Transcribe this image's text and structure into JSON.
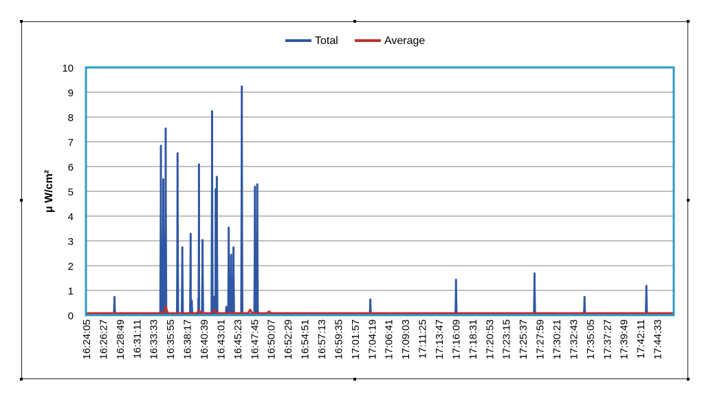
{
  "chart_data": {
    "type": "line",
    "title": "",
    "xlabel": "",
    "ylabel": "μ W/cm²",
    "ylim": [
      0,
      10
    ],
    "yticks": [
      0,
      1,
      2,
      3,
      4,
      5,
      6,
      7,
      8,
      9,
      10
    ],
    "grid": true,
    "legend_placement": "top-center",
    "categories": [
      "16:24:05",
      "16:26:27",
      "16:28:49",
      "16:31:11",
      "16:33:33",
      "16:35:55",
      "16:38:17",
      "16:40:39",
      "16:43:01",
      "16:45:23",
      "16:47:45",
      "16:50:07",
      "16:52:29",
      "16:54:51",
      "16:57:13",
      "16:59:35",
      "17:01:57",
      "17:04:19",
      "17:06:41",
      "17:09:03",
      "17:11:25",
      "17:13:47",
      "17:16:09",
      "17:18:31",
      "17:20:53",
      "17:23:15",
      "17:25:37",
      "17:27:59",
      "17:30:21",
      "17:32:43",
      "17:35:05",
      "17:37:27",
      "17:39:49",
      "17:42:11",
      "17:44:33"
    ],
    "x_range": [
      "16:24:05",
      "17:46:25"
    ],
    "series": [
      {
        "name": "Total",
        "color": "#2f57a4",
        "peaks": [
          {
            "time": "16:28:05",
            "value": 0.75
          },
          {
            "time": "16:34:35",
            "value": 6.85
          },
          {
            "time": "16:34:55",
            "value": 5.5
          },
          {
            "time": "16:35:15",
            "value": 7.55
          },
          {
            "time": "16:36:55",
            "value": 6.55
          },
          {
            "time": "16:37:35",
            "value": 2.75
          },
          {
            "time": "16:38:45",
            "value": 3.3
          },
          {
            "time": "16:38:55",
            "value": 0.6
          },
          {
            "time": "16:39:50",
            "value": 0.7
          },
          {
            "time": "16:39:55",
            "value": 6.1
          },
          {
            "time": "16:40:25",
            "value": 3.05
          },
          {
            "time": "16:41:45",
            "value": 8.25
          },
          {
            "time": "16:42:05",
            "value": 0.75
          },
          {
            "time": "16:42:15",
            "value": 5.1
          },
          {
            "time": "16:42:25",
            "value": 5.6
          },
          {
            "time": "16:43:45",
            "value": 0.35
          },
          {
            "time": "16:44:05",
            "value": 3.55
          },
          {
            "time": "16:44:25",
            "value": 2.45
          },
          {
            "time": "16:44:45",
            "value": 2.75
          },
          {
            "time": "16:45:55",
            "value": 9.25
          },
          {
            "time": "16:47:45",
            "value": 5.2
          },
          {
            "time": "16:48:05",
            "value": 5.3
          },
          {
            "time": "17:03:55",
            "value": 0.65
          },
          {
            "time": "17:15:55",
            "value": 1.45
          },
          {
            "time": "17:26:55",
            "value": 1.7
          },
          {
            "time": "17:33:55",
            "value": 0.75
          },
          {
            "time": "17:42:35",
            "value": 1.2
          }
        ]
      },
      {
        "name": "Average",
        "color": "#c0302e",
        "typical_value": 0.08,
        "bumps": [
          {
            "time": "16:35:15",
            "value": 0.35
          },
          {
            "time": "16:39:55",
            "value": 0.2
          },
          {
            "time": "16:42:05",
            "value": 0.22
          },
          {
            "time": "16:47:05",
            "value": 0.22
          },
          {
            "time": "16:49:45",
            "value": 0.15
          }
        ]
      }
    ]
  }
}
